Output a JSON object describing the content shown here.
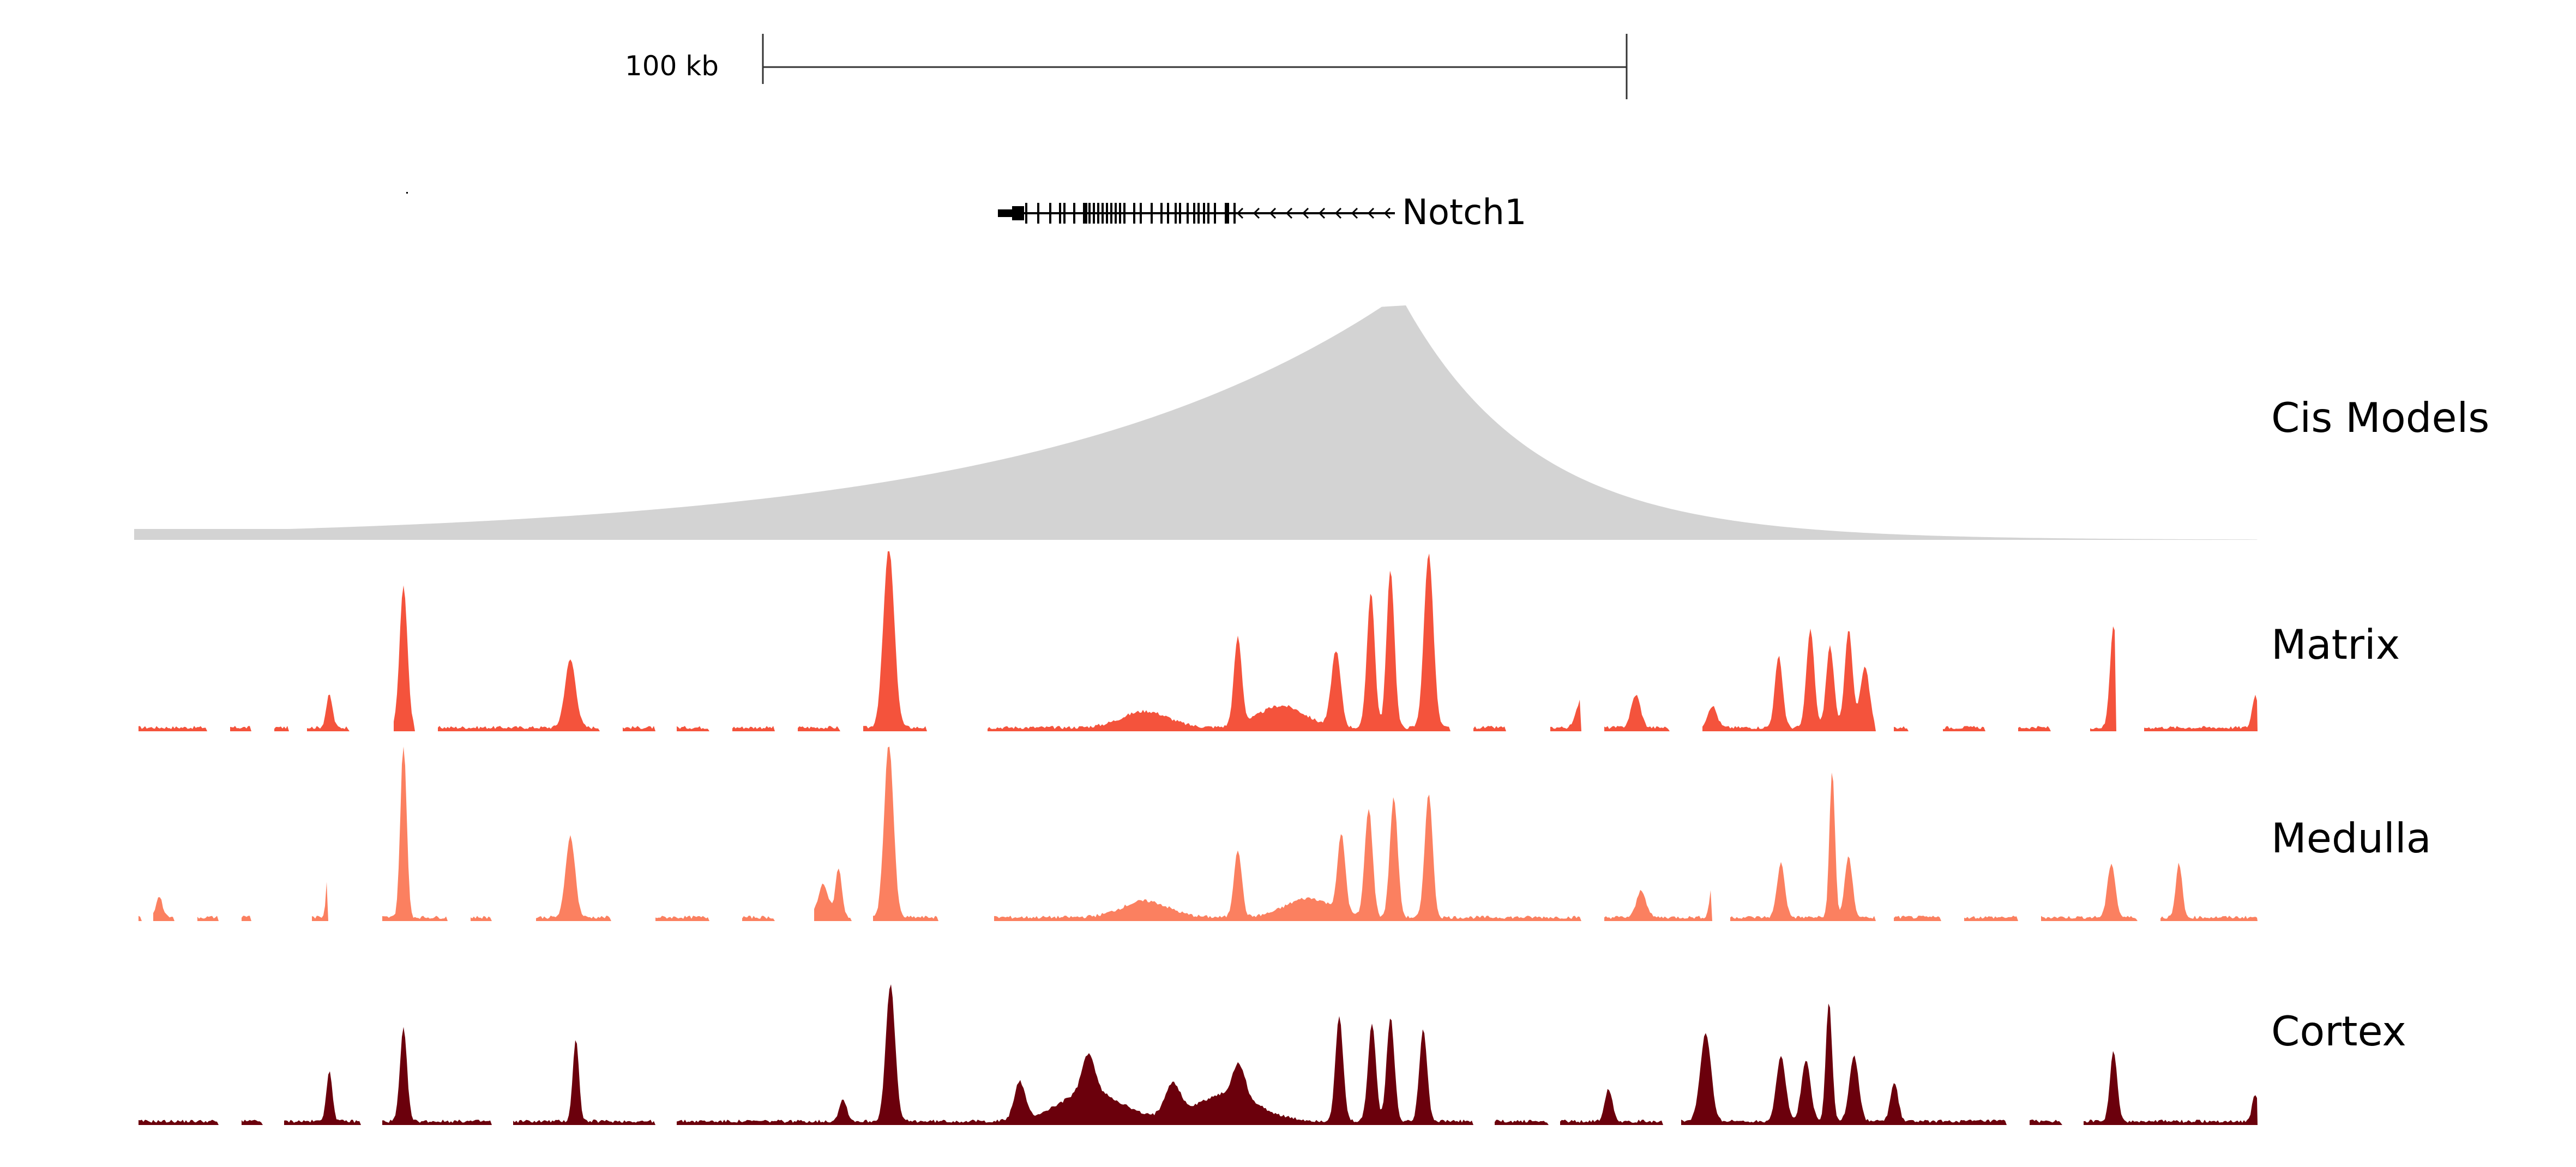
{
  "scale_bar": {
    "label": "100 kb"
  },
  "gene": {
    "name": "Notch1",
    "strand": "-",
    "color": "#000000"
  },
  "tracks": [
    {
      "id": "cis-models",
      "label": "Cis Models",
      "type": "decay",
      "color": "#d3d3d3"
    },
    {
      "id": "matrix",
      "label": "Matrix",
      "type": "signal",
      "color": "#f4533c"
    },
    {
      "id": "medulla",
      "label": "Medulla",
      "type": "signal",
      "color": "#fb8060"
    },
    {
      "id": "cortex",
      "label": "Cortex",
      "type": "signal",
      "color": "#6b000c"
    }
  ]
}
